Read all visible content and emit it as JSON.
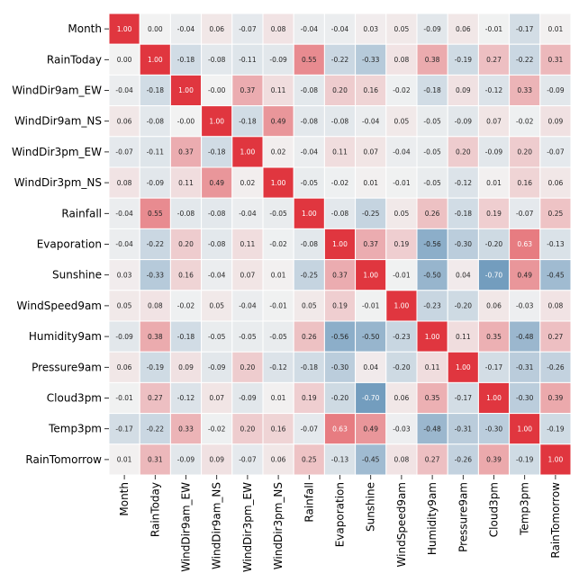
{
  "chart_data": {
    "type": "heatmap",
    "title": "",
    "xlabel": "",
    "ylabel": "",
    "value_range": [
      -1,
      1
    ],
    "colormap": {
      "negative": "#3c78a8",
      "center": "#f2f2f2",
      "positive": "#e0363f"
    },
    "grid": "white cell borders",
    "legend": "none",
    "labels": [
      "Month",
      "RainToday",
      "WindDir9am_EW",
      "WindDir9am_NS",
      "WindDir3pm_EW",
      "WindDir3pm_NS",
      "Rainfall",
      "Evaporation",
      "Sunshine",
      "WindSpeed9am",
      "Humidity9am",
      "Pressure9am",
      "Cloud3pm",
      "Temp3pm",
      "RainTomorrow"
    ],
    "matrix": [
      [
        1.0,
        0.0,
        -0.04,
        0.06,
        -0.07,
        0.08,
        -0.04,
        -0.04,
        0.03,
        0.05,
        -0.09,
        0.06,
        -0.01,
        -0.17,
        0.01
      ],
      [
        0.0,
        1.0,
        -0.18,
        -0.08,
        -0.11,
        -0.09,
        0.55,
        -0.22,
        -0.33,
        0.08,
        0.38,
        -0.19,
        0.27,
        -0.22,
        0.31
      ],
      [
        -0.04,
        -0.18,
        1.0,
        -0.0,
        0.37,
        0.11,
        -0.08,
        0.2,
        0.16,
        -0.02,
        -0.18,
        0.09,
        -0.12,
        0.33,
        -0.09
      ],
      [
        0.06,
        -0.08,
        -0.0,
        1.0,
        -0.18,
        0.49,
        -0.08,
        -0.08,
        -0.04,
        0.05,
        -0.05,
        -0.09,
        0.07,
        -0.02,
        0.09
      ],
      [
        -0.07,
        -0.11,
        0.37,
        -0.18,
        1.0,
        0.02,
        -0.04,
        0.11,
        0.07,
        -0.04,
        -0.05,
        0.2,
        -0.09,
        0.2,
        -0.07
      ],
      [
        0.08,
        -0.09,
        0.11,
        0.49,
        0.02,
        1.0,
        -0.05,
        -0.02,
        0.01,
        -0.01,
        -0.05,
        -0.12,
        0.01,
        0.16,
        0.06
      ],
      [
        -0.04,
        0.55,
        -0.08,
        -0.08,
        -0.04,
        -0.05,
        1.0,
        -0.08,
        -0.25,
        0.05,
        0.26,
        -0.18,
        0.19,
        -0.07,
        0.25
      ],
      [
        -0.04,
        -0.22,
        0.2,
        -0.08,
        0.11,
        -0.02,
        -0.08,
        1.0,
        0.37,
        0.19,
        -0.56,
        -0.3,
        -0.2,
        0.63,
        -0.13
      ],
      [
        0.03,
        -0.33,
        0.16,
        -0.04,
        0.07,
        0.01,
        -0.25,
        0.37,
        1.0,
        -0.01,
        -0.5,
        0.04,
        -0.7,
        0.49,
        -0.45
      ],
      [
        0.05,
        0.08,
        -0.02,
        0.05,
        -0.04,
        -0.01,
        0.05,
        0.19,
        -0.01,
        1.0,
        -0.23,
        -0.2,
        0.06,
        -0.03,
        0.08
      ],
      [
        -0.09,
        0.38,
        -0.18,
        -0.05,
        -0.05,
        -0.05,
        0.26,
        -0.56,
        -0.5,
        -0.23,
        1.0,
        0.11,
        0.35,
        -0.48,
        0.27
      ],
      [
        0.06,
        -0.19,
        0.09,
        -0.09,
        0.2,
        -0.12,
        -0.18,
        -0.3,
        0.04,
        -0.2,
        0.11,
        1.0,
        -0.17,
        -0.31,
        -0.26
      ],
      [
        -0.01,
        0.27,
        -0.12,
        0.07,
        -0.09,
        0.01,
        0.19,
        -0.2,
        -0.7,
        0.06,
        0.35,
        -0.17,
        1.0,
        -0.3,
        0.39
      ],
      [
        -0.17,
        -0.22,
        0.33,
        -0.02,
        0.2,
        0.16,
        -0.07,
        0.63,
        0.49,
        -0.03,
        -0.48,
        -0.31,
        -0.3,
        1.0,
        -0.19
      ],
      [
        0.01,
        0.31,
        -0.09,
        0.09,
        -0.07,
        0.06,
        0.25,
        -0.13,
        -0.45,
        0.08,
        0.27,
        -0.26,
        0.39,
        -0.19,
        1.0
      ]
    ],
    "cell_text": [
      [
        "1.00",
        "0.00",
        "-0.04",
        "0.06",
        "-0.07",
        "0.08",
        "-0.04",
        "-0.04",
        "0.03",
        "0.05",
        "-0.09",
        "0.06",
        "-0.01",
        "-0.17",
        "0.01"
      ],
      [
        "0.00",
        "1.00",
        "-0.18",
        "-0.08",
        "-0.11",
        "-0.09",
        "0.55",
        "-0.22",
        "-0.33",
        "0.08",
        "0.38",
        "-0.19",
        "0.27",
        "-0.22",
        "0.31"
      ],
      [
        "-0.04",
        "-0.18",
        "1.00",
        "-0.00",
        "0.37",
        "0.11",
        "-0.08",
        "0.20",
        "0.16",
        "-0.02",
        "-0.18",
        "0.09",
        "-0.12",
        "0.33",
        "-0.09"
      ],
      [
        "0.06",
        "-0.08",
        "-0.00",
        "1.00",
        "-0.18",
        "0.49",
        "-0.08",
        "-0.08",
        "-0.04",
        "0.05",
        "-0.05",
        "-0.09",
        "0.07",
        "-0.02",
        "0.09"
      ],
      [
        "-0.07",
        "-0.11",
        "0.37",
        "-0.18",
        "1.00",
        "0.02",
        "-0.04",
        "0.11",
        "0.07",
        "-0.04",
        "-0.05",
        "0.20",
        "-0.09",
        "0.20",
        "-0.07"
      ],
      [
        "0.08",
        "-0.09",
        "0.11",
        "0.49",
        "0.02",
        "1.00",
        "-0.05",
        "-0.02",
        "0.01",
        "-0.01",
        "-0.05",
        "-0.12",
        "0.01",
        "0.16",
        "0.06"
      ],
      [
        "-0.04",
        "0.55",
        "-0.08",
        "-0.08",
        "-0.04",
        "-0.05",
        "1.00",
        "-0.08",
        "-0.25",
        "0.05",
        "0.26",
        "-0.18",
        "0.19",
        "-0.07",
        "0.25"
      ],
      [
        "-0.04",
        "-0.22",
        "0.20",
        "-0.08",
        "0.11",
        "-0.02",
        "-0.08",
        "1.00",
        "0.37",
        "0.19",
        "-0.56",
        "-0.30",
        "-0.20",
        "0.63",
        "-0.13"
      ],
      [
        "0.03",
        "-0.33",
        "0.16",
        "-0.04",
        "0.07",
        "0.01",
        "-0.25",
        "0.37",
        "1.00",
        "-0.01",
        "-0.50",
        "0.04",
        "-0.70",
        "0.49",
        "-0.45"
      ],
      [
        "0.05",
        "0.08",
        "-0.02",
        "0.05",
        "-0.04",
        "-0.01",
        "0.05",
        "0.19",
        "-0.01",
        "1.00",
        "-0.23",
        "-0.20",
        "0.06",
        "-0.03",
        "0.08"
      ],
      [
        "-0.09",
        "0.38",
        "-0.18",
        "-0.05",
        "-0.05",
        "-0.05",
        "0.26",
        "-0.56",
        "-0.50",
        "-0.23",
        "1.00",
        "0.11",
        "0.35",
        "-0.48",
        "0.27"
      ],
      [
        "0.06",
        "-0.19",
        "0.09",
        "-0.09",
        "0.20",
        "-0.12",
        "-0.18",
        "-0.30",
        "0.04",
        "-0.20",
        "0.11",
        "1.00",
        "-0.17",
        "-0.31",
        "-0.26"
      ],
      [
        "-0.01",
        "0.27",
        "-0.12",
        "0.07",
        "-0.09",
        "0.01",
        "0.19",
        "-0.20",
        "-0.70",
        "0.06",
        "0.35",
        "-0.17",
        "1.00",
        "-0.30",
        "0.39"
      ],
      [
        "-0.17",
        "-0.22",
        "0.33",
        "-0.02",
        "0.20",
        "0.16",
        "-0.07",
        "0.63",
        "0.49",
        "-0.03",
        "-0.48",
        "-0.31",
        "-0.30",
        "1.00",
        "-0.19"
      ],
      [
        "0.01",
        "0.31",
        "-0.09",
        "0.09",
        "-0.07",
        "0.06",
        "0.25",
        "-0.13",
        "-0.45",
        "0.08",
        "0.27",
        "-0.26",
        "0.39",
        "-0.19",
        "1.00"
      ]
    ]
  }
}
